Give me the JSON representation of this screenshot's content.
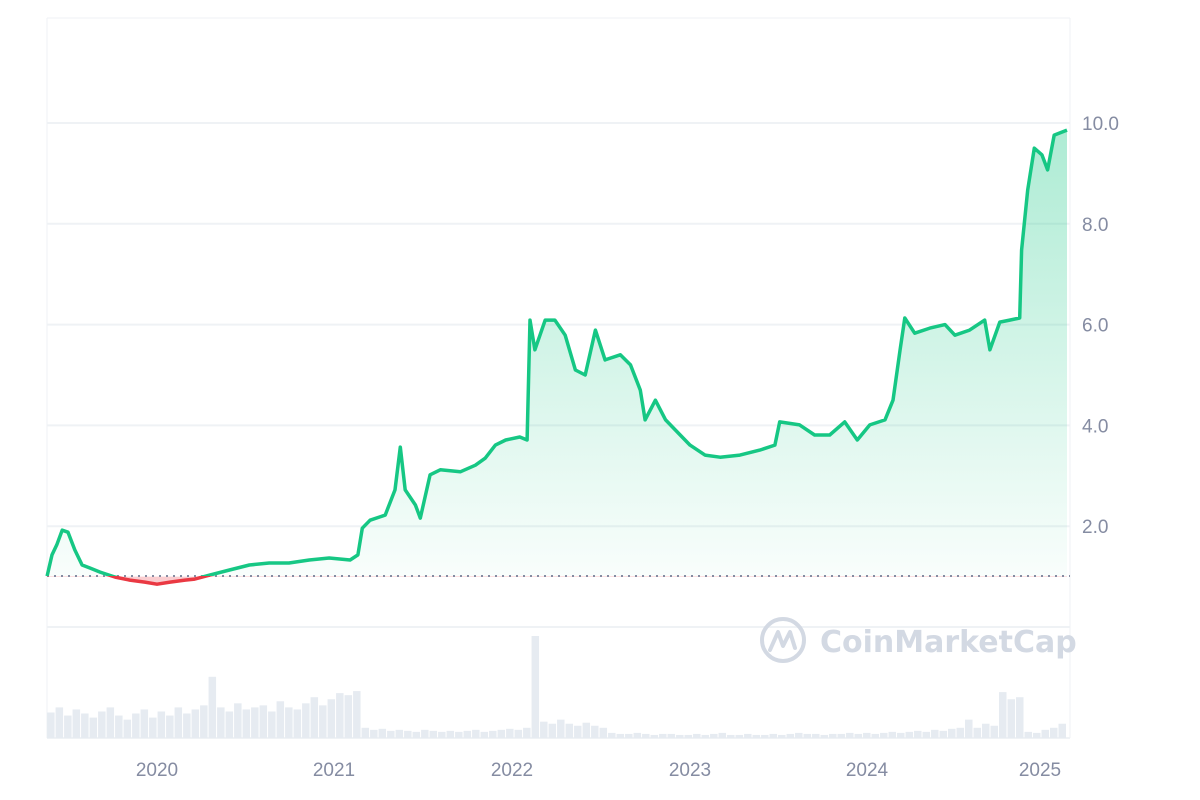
{
  "chart_data": {
    "type": "area",
    "title": "",
    "xlabel": "",
    "ylabel": "",
    "baseline": 1.0,
    "ylim": [
      0,
      12
    ],
    "y_ticks": [
      "2.0",
      "4.0",
      "6.0",
      "8.0",
      "10.0"
    ],
    "x_ticks": [
      "2020",
      "2021",
      "2022",
      "2023",
      "2024",
      "2025"
    ],
    "grid": "horizontal",
    "colors": {
      "up": "#16c784",
      "down": "#ea3943",
      "volume": "#e6ebf1",
      "grid": "#eff2f5",
      "tick": "#858ca2"
    },
    "watermark": "CoinMarketCap",
    "series": [
      {
        "points": [
          [
            "2019-05-20",
            1.01
          ],
          [
            "2019-05-30",
            1.43
          ],
          [
            "2019-06-09",
            1.63
          ],
          [
            "2019-06-20",
            1.92
          ],
          [
            "2019-07-02",
            1.88
          ],
          [
            "2019-07-16",
            1.53
          ],
          [
            "2019-07-31",
            1.23
          ],
          [
            "2019-08-16",
            1.17
          ],
          [
            "2019-09-06",
            1.09
          ],
          [
            "2019-10-07",
            0.99
          ],
          [
            "2019-11-06",
            0.93
          ],
          [
            "2019-12-07",
            0.89
          ],
          [
            "2020-01-01",
            0.85
          ],
          [
            "2020-01-28",
            0.89
          ],
          [
            "2020-02-28",
            0.93
          ],
          [
            "2020-03-19",
            0.95
          ],
          [
            "2020-04-19",
            1.03
          ],
          [
            "2020-05-30",
            1.13
          ],
          [
            "2020-07-10",
            1.23
          ],
          [
            "2020-08-20",
            1.27
          ],
          [
            "2020-09-30",
            1.27
          ],
          [
            "2020-11-11",
            1.33
          ],
          [
            "2020-12-22",
            1.37
          ],
          [
            "2021-02-03",
            1.33
          ],
          [
            "2021-02-19",
            1.43
          ],
          [
            "2021-02-28",
            1.96
          ],
          [
            "2021-03-16",
            2.12
          ],
          [
            "2021-04-16",
            2.22
          ],
          [
            "2021-05-06",
            2.72
          ],
          [
            "2021-05-17",
            3.57
          ],
          [
            "2021-05-27",
            2.72
          ],
          [
            "2021-06-17",
            2.42
          ],
          [
            "2021-06-27",
            2.16
          ],
          [
            "2021-07-17",
            3.02
          ],
          [
            "2021-08-07",
            3.12
          ],
          [
            "2021-09-17",
            3.08
          ],
          [
            "2021-10-18",
            3.21
          ],
          [
            "2021-11-07",
            3.35
          ],
          [
            "2021-11-28",
            3.61
          ],
          [
            "2021-12-19",
            3.71
          ],
          [
            "2022-01-17",
            3.77
          ],
          [
            "2022-02-01",
            3.71
          ],
          [
            "2022-02-07",
            6.09
          ],
          [
            "2022-02-17",
            5.5
          ],
          [
            "2022-03-10",
            6.09
          ],
          [
            "2022-03-30",
            6.09
          ],
          [
            "2022-04-20",
            5.79
          ],
          [
            "2022-05-11",
            5.1
          ],
          [
            "2022-05-31",
            5.0
          ],
          [
            "2022-06-21",
            5.89
          ],
          [
            "2022-07-11",
            5.3
          ],
          [
            "2022-08-11",
            5.4
          ],
          [
            "2022-09-01",
            5.2
          ],
          [
            "2022-09-21",
            4.7
          ],
          [
            "2022-10-01",
            4.11
          ],
          [
            "2022-10-22",
            4.5
          ],
          [
            "2022-11-12",
            4.11
          ],
          [
            "2022-12-12",
            3.81
          ],
          [
            "2023-01-01",
            3.61
          ],
          [
            "2023-02-01",
            3.41
          ],
          [
            "2023-03-04",
            3.37
          ],
          [
            "2023-04-14",
            3.41
          ],
          [
            "2023-05-25",
            3.51
          ],
          [
            "2023-06-25",
            3.61
          ],
          [
            "2023-07-05",
            4.07
          ],
          [
            "2023-08-15",
            4.01
          ],
          [
            "2023-09-15",
            3.81
          ],
          [
            "2023-10-16",
            3.81
          ],
          [
            "2023-11-16",
            4.07
          ],
          [
            "2023-12-12",
            3.71
          ],
          [
            "2024-01-07",
            4.01
          ],
          [
            "2024-02-08",
            4.11
          ],
          [
            "2024-02-25",
            4.5
          ],
          [
            "2024-03-11",
            5.5
          ],
          [
            "2024-03-21",
            6.13
          ],
          [
            "2024-04-11",
            5.83
          ],
          [
            "2024-05-13",
            5.93
          ],
          [
            "2024-06-14",
            6.0
          ],
          [
            "2024-07-05",
            5.79
          ],
          [
            "2024-08-05",
            5.89
          ],
          [
            "2024-09-06",
            6.09
          ],
          [
            "2024-09-17",
            5.5
          ],
          [
            "2024-10-08",
            6.05
          ],
          [
            "2024-10-29",
            6.09
          ],
          [
            "2024-11-19",
            6.13
          ],
          [
            "2024-11-23",
            7.48
          ],
          [
            "2024-12-06",
            8.67
          ],
          [
            "2024-12-20",
            9.5
          ],
          [
            "2025-01-05",
            9.37
          ],
          [
            "2025-01-17",
            9.07
          ],
          [
            "2025-01-31",
            9.76
          ],
          [
            "2025-02-27",
            9.86
          ]
        ]
      }
    ],
    "volume": {
      "start": "2019-05-20",
      "end": "2025-02-27",
      "unit": "relative",
      "values": [
        25,
        30,
        22,
        28,
        24,
        20,
        26,
        30,
        22,
        18,
        24,
        28,
        20,
        26,
        22,
        30,
        24,
        28,
        32,
        60,
        30,
        26,
        34,
        28,
        30,
        32,
        26,
        36,
        30,
        28,
        34,
        40,
        32,
        38,
        44,
        42,
        46,
        10,
        8,
        9,
        7,
        8,
        7,
        6,
        8,
        7,
        6,
        7,
        6,
        7,
        8,
        6,
        7,
        8,
        9,
        8,
        10,
        100,
        16,
        14,
        18,
        14,
        12,
        15,
        12,
        10,
        5,
        4,
        4,
        5,
        4,
        3,
        4,
        4,
        3,
        3,
        4,
        3,
        4,
        5,
        3,
        3,
        4,
        3,
        3,
        4,
        3,
        4,
        5,
        4,
        4,
        3,
        4,
        4,
        5,
        4,
        5,
        4,
        5,
        6,
        5,
        6,
        7,
        6,
        8,
        7,
        9,
        10,
        18,
        10,
        14,
        12,
        45,
        38,
        40,
        6,
        5,
        8,
        10,
        14
      ]
    }
  }
}
